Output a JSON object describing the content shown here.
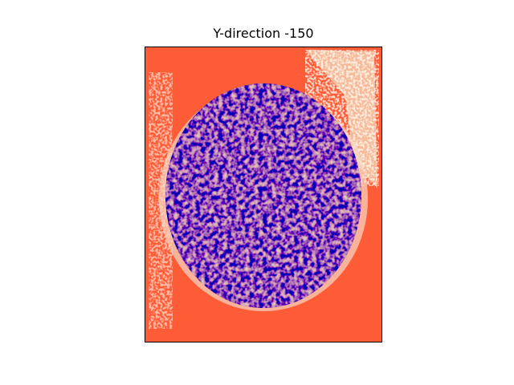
{
  "title": "Y-direction -150"
}
